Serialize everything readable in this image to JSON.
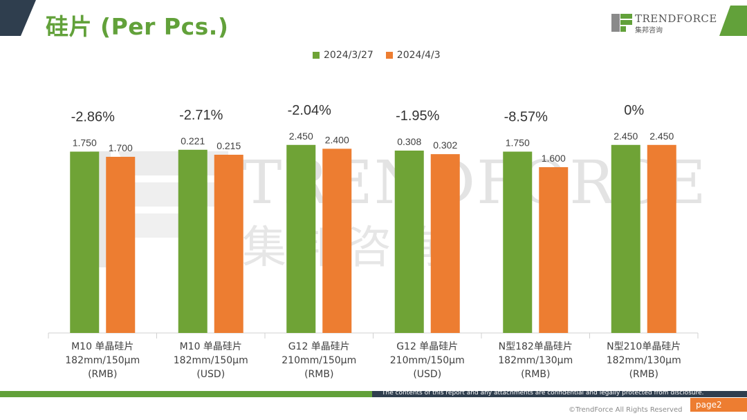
{
  "header": {
    "title": "硅片 (Per Pcs.)",
    "logo_name": "TRENDFORCE",
    "logo_sub": "集邦咨询"
  },
  "watermark": {
    "name": "TRENDFORCE",
    "sub": "集邦咨询"
  },
  "legend": [
    {
      "label": "2024/3/27",
      "color": "#6fa336"
    },
    {
      "label": "2024/4/3",
      "color": "#ed7d31"
    }
  ],
  "chart_data": {
    "type": "bar",
    "categories": [
      [
        "M10 单晶硅片",
        "182mm/150μm",
        "(RMB)"
      ],
      [
        "M10 单晶硅片",
        "182mm/150μm",
        "(USD)"
      ],
      [
        "G12 单晶硅片",
        "210mm/150μm",
        "(RMB)"
      ],
      [
        "G12 单晶硅片",
        "210mm/150μm",
        "(USD)"
      ],
      [
        "N型182单晶硅片",
        "182mm/130μm",
        "(RMB)"
      ],
      [
        "N型210单晶硅片",
        "182mm/130μm",
        "(RMB)"
      ]
    ],
    "series": [
      {
        "name": "2024/3/27",
        "color": "#6fa336",
        "values": [
          1.75,
          0.221,
          2.45,
          0.308,
          1.75,
          2.45
        ],
        "labels": [
          "1.750",
          "0.221",
          "2.450",
          "0.308",
          "1.750",
          "2.450"
        ]
      },
      {
        "name": "2024/4/3",
        "color": "#ed7d31",
        "values": [
          1.7,
          0.215,
          2.4,
          0.302,
          1.6,
          2.45
        ],
        "labels": [
          "1.700",
          "0.215",
          "2.400",
          "0.302",
          "1.600",
          "2.450"
        ]
      }
    ],
    "change_labels": [
      "-2.86%",
      "-2.71%",
      "-2.04%",
      "-1.95%",
      "-8.57%",
      "0%"
    ],
    "scale_max": [
      2.0,
      0.25,
      2.7,
      0.35,
      2.0,
      2.7
    ]
  },
  "footer": {
    "disclaimer": "The contents of this report and any attachments are confidential and legally protected from disclosure.",
    "page": "page2",
    "copyright": "©TrendForce All Rights Reserved"
  }
}
